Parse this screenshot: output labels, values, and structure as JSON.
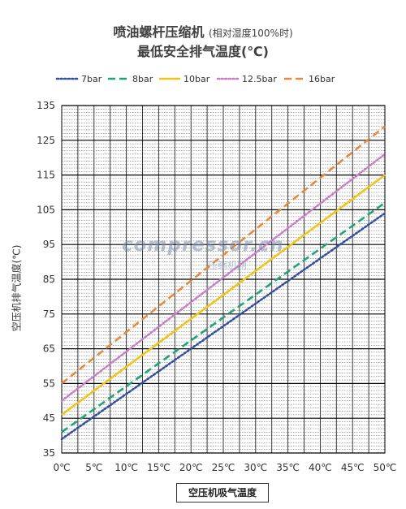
{
  "chart_data": {
    "type": "line",
    "title": "喷油螺杆压缩机",
    "title_note": "(相对湿度100%时)",
    "subtitle": "最低安全排气温度(℃)",
    "xlabel": "空压机吸气温度",
    "ylabel": "空压机排气温度(℃)",
    "x": [
      0,
      50
    ],
    "x_tick_labels": [
      "0℃",
      "5℃",
      "10℃",
      "15℃",
      "20℃",
      "25℃",
      "30℃",
      "35℃",
      "40℃",
      "45℃",
      "50℃"
    ],
    "x_ticks": [
      0,
      5,
      10,
      15,
      20,
      25,
      30,
      35,
      40,
      45,
      50
    ],
    "y_ticks": [
      35,
      45,
      55,
      65,
      75,
      85,
      95,
      105,
      115,
      125,
      135
    ],
    "xlim": [
      0,
      50
    ],
    "ylim": [
      35,
      135
    ],
    "grid": true,
    "legend_position": "top",
    "series": [
      {
        "name": "7bar",
        "values": [
          39,
          104
        ],
        "color": "#2f4f9e",
        "dash": "dotted"
      },
      {
        "name": "8bar",
        "values": [
          41,
          107
        ],
        "color": "#1fa37a",
        "dash": "dashed"
      },
      {
        "name": "10bar",
        "values": [
          46,
          115
        ],
        "color": "#f0c419",
        "dash": "solid"
      },
      {
        "name": "12.5bar",
        "values": [
          50,
          121
        ],
        "color": "#c77dc7",
        "dash": "dotted"
      },
      {
        "name": "16bar",
        "values": [
          55,
          129
        ],
        "color": "#e8893a",
        "dash": "dashed"
      }
    ]
  },
  "watermark": {
    "text": "compressor.cn",
    "subtext": "压缩机网"
  }
}
